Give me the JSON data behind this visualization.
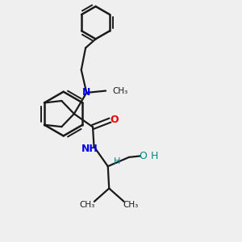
{
  "bg_color": "#efefef",
  "bond_color": "#1a1a1a",
  "N_color": "#0000ee",
  "O_color": "#ee0000",
  "OH_color": "#008888",
  "figsize": [
    3.0,
    3.0
  ],
  "dpi": 100,
  "xlim": [
    0,
    10
  ],
  "ylim": [
    0,
    10
  ]
}
